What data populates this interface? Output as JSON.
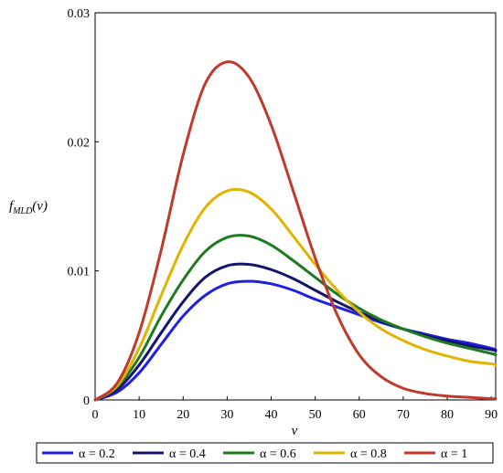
{
  "chart_data": {
    "type": "line",
    "title": "",
    "xlabel": "ν",
    "ylabel": "f_MLD(ν)",
    "ylabel_main": "f",
    "ylabel_sub": "MLD",
    "ylabel_tail": "(ν)",
    "xlim": [
      0,
      91
    ],
    "ylim": [
      0,
      0.03
    ],
    "grid": false,
    "legend_position": "bottom",
    "x_ticks": [
      0,
      10,
      20,
      30,
      40,
      50,
      60,
      70,
      80,
      90
    ],
    "x_tick_labels": [
      "0",
      "10",
      "20",
      "30",
      "40",
      "50",
      "60",
      "70",
      "80",
      "90"
    ],
    "y_ticks": [
      0,
      0.01,
      0.02,
      0.03
    ],
    "y_tick_labels": [
      "0",
      "0.01",
      "0.02",
      "0.03"
    ],
    "x": [
      0,
      5,
      10,
      15,
      20,
      25,
      30,
      35,
      40,
      45,
      50,
      55,
      60,
      65,
      70,
      75,
      80,
      85,
      90,
      91
    ],
    "series": [
      {
        "name": "α = 0.2",
        "color": "#1f1fe6",
        "values": [
          0,
          0.0006,
          0.0021,
          0.0043,
          0.0065,
          0.0081,
          0.009,
          0.0092,
          0.009,
          0.0085,
          0.0078,
          0.0072,
          0.0066,
          0.006,
          0.0055,
          0.0051,
          0.0047,
          0.0044,
          0.004,
          0.0039
        ]
      },
      {
        "name": "α = 0.4",
        "color": "#14146e",
        "values": [
          0,
          0.0008,
          0.0027,
          0.0052,
          0.0076,
          0.0095,
          0.0104,
          0.0105,
          0.0101,
          0.0094,
          0.0085,
          0.0076,
          0.0068,
          0.0061,
          0.0055,
          0.005,
          0.0046,
          0.0042,
          0.0039,
          0.0038
        ]
      },
      {
        "name": "α = 0.6",
        "color": "#1e7a1e",
        "values": [
          0,
          0.001,
          0.0033,
          0.0065,
          0.0093,
          0.0115,
          0.0126,
          0.0127,
          0.012,
          0.0108,
          0.0095,
          0.0082,
          0.0071,
          0.0062,
          0.0055,
          0.0049,
          0.0044,
          0.004,
          0.0036,
          0.0035
        ]
      },
      {
        "name": "α = 0.8",
        "color": "#e0b400",
        "values": [
          0,
          0.0011,
          0.004,
          0.0081,
          0.012,
          0.0149,
          0.0162,
          0.0161,
          0.0148,
          0.0127,
          0.0105,
          0.0085,
          0.0068,
          0.0055,
          0.0046,
          0.0039,
          0.0034,
          0.003,
          0.0028,
          0.0027
        ]
      },
      {
        "name": "α = 1",
        "color": "#c0392b",
        "values": [
          0,
          0.0013,
          0.0052,
          0.0116,
          0.019,
          0.0245,
          0.0262,
          0.025,
          0.0213,
          0.0162,
          0.011,
          0.0066,
          0.0035,
          0.0018,
          0.0009,
          0.0005,
          0.0003,
          0.0002,
          0.0001,
          0.0001
        ]
      }
    ]
  }
}
